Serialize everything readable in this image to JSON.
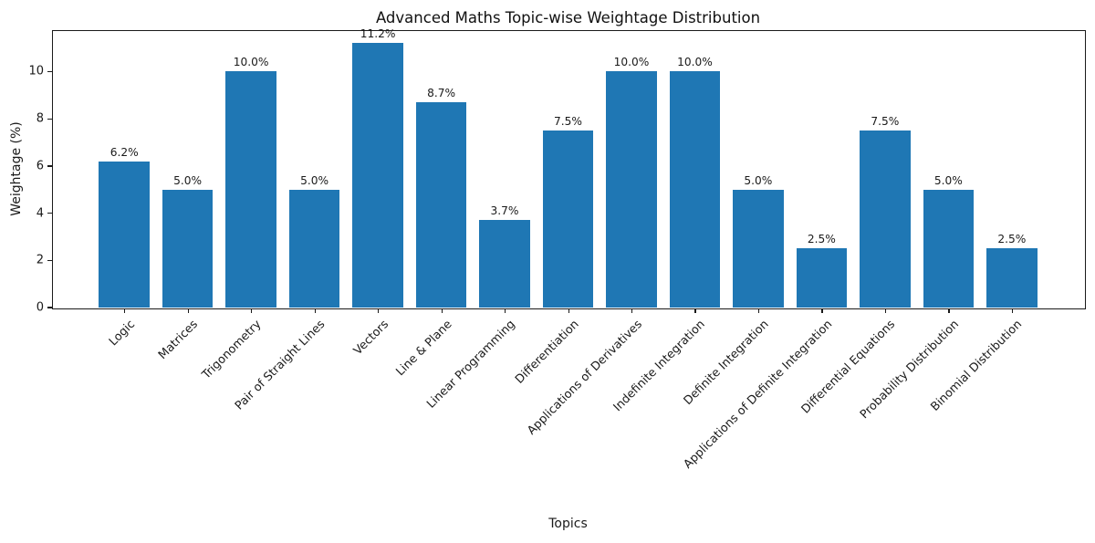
{
  "chart_data": {
    "type": "bar",
    "title": "Advanced Maths Topic-wise Weightage Distribution",
    "xlabel": "Topics",
    "ylabel": "Weightage (%)",
    "categories": [
      "Logic",
      "Matrices",
      "Trigonometry",
      "Pair of Straight Lines",
      "Vectors",
      "Line & Plane",
      "Linear Programming",
      "Differentiation",
      "Applications of Derivatives",
      "Indefinite Integration",
      "Definite Integration",
      "Applications of Definite Integration",
      "Differential Equations",
      "Probability Distribution",
      "Binomial Distribution"
    ],
    "values": [
      6.2,
      5.0,
      10.0,
      5.0,
      11.2,
      8.7,
      3.7,
      7.5,
      10.0,
      10.0,
      5.0,
      2.5,
      7.5,
      5.0,
      2.5
    ],
    "bar_labels": [
      "6.2%",
      "5.0%",
      "10.0%",
      "5.0%",
      "11.2%",
      "8.7%",
      "3.7%",
      "7.5%",
      "10.0%",
      "10.0%",
      "5.0%",
      "2.5%",
      "7.5%",
      "5.0%",
      "2.5%"
    ],
    "yticks": [
      0,
      2,
      4,
      6,
      8,
      10
    ],
    "ylim": [
      0,
      11.76
    ],
    "bar_color": "#1f77b4",
    "grid": false,
    "legend_position": "none",
    "x_label_rotation_deg": 45
  }
}
